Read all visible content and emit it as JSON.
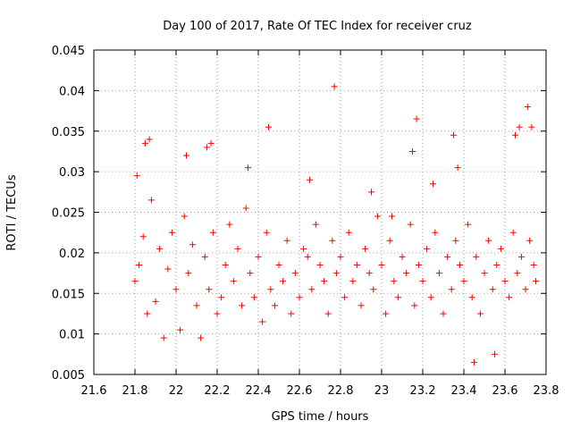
{
  "chart_data": {
    "type": "scatter",
    "title": "Day 100 of 2017, Rate Of TEC Index for receiver cruz",
    "xlabel": "GPS time / hours",
    "ylabel": "ROTI / TECUs",
    "xlim": [
      21.6,
      23.8
    ],
    "ylim": [
      0.005,
      0.045
    ],
    "x_ticks": [
      "21.6",
      "21.8",
      "22",
      "22.2",
      "22.4",
      "22.6",
      "22.8",
      "23",
      "23.2",
      "23.4",
      "23.6",
      "23.8"
    ],
    "y_ticks": [
      "0.005",
      "0.01",
      "0.015",
      "0.02",
      "0.025",
      "0.03",
      "0.035",
      "0.04",
      "0.045"
    ],
    "grid": true,
    "marker": "+",
    "marker_color": "#ff0000",
    "series": [
      {
        "x": [
          21.8,
          21.82,
          21.84,
          21.86,
          21.88,
          21.9,
          21.92,
          21.94,
          21.96,
          21.98,
          22.0,
          22.02,
          22.04,
          22.06,
          22.08,
          22.1,
          22.12,
          22.14,
          22.16,
          22.18,
          22.2,
          22.22,
          22.24,
          22.26,
          22.28,
          22.3,
          22.32,
          22.34,
          22.36,
          22.38,
          22.4,
          22.42,
          22.44,
          22.46,
          22.48,
          22.5,
          22.52,
          22.54,
          22.56,
          22.58,
          22.6,
          22.62,
          22.64,
          22.66,
          22.68,
          22.7,
          22.72,
          22.74,
          22.76,
          22.78,
          22.8,
          22.82,
          22.84,
          22.86,
          22.88,
          22.9,
          22.92,
          22.94,
          22.96,
          22.98,
          23.0,
          23.02,
          23.04,
          23.06,
          23.08,
          23.1,
          23.12,
          23.14,
          23.16,
          23.18,
          23.2,
          23.22,
          23.24,
          23.26,
          23.28,
          23.3,
          23.32,
          23.34,
          23.36,
          23.38,
          23.4,
          23.42,
          23.44,
          23.46,
          23.48,
          23.5,
          23.52,
          23.54,
          23.56,
          23.58,
          23.6,
          23.62,
          23.64,
          23.66,
          23.68,
          23.7,
          23.72,
          23.74,
          23.75,
          21.81,
          21.85,
          21.87,
          22.05,
          22.15,
          22.17,
          22.35,
          22.45,
          22.65,
          22.77,
          22.95,
          23.05,
          23.15,
          23.17,
          23.25,
          23.35,
          23.37,
          23.45,
          23.55,
          23.65,
          23.67,
          23.71,
          23.73
        ],
        "y": [
          0.0165,
          0.0185,
          0.022,
          0.0125,
          0.0265,
          0.014,
          0.0205,
          0.0095,
          0.018,
          0.0225,
          0.0155,
          0.0105,
          0.0245,
          0.0175,
          0.021,
          0.0135,
          0.0095,
          0.0195,
          0.0155,
          0.0225,
          0.0125,
          0.0145,
          0.0185,
          0.0235,
          0.0165,
          0.0205,
          0.0135,
          0.0255,
          0.0175,
          0.0145,
          0.0195,
          0.0115,
          0.0225,
          0.0155,
          0.0135,
          0.0185,
          0.0165,
          0.0215,
          0.0125,
          0.0175,
          0.0145,
          0.0205,
          0.0195,
          0.0155,
          0.0235,
          0.0185,
          0.0165,
          0.0125,
          0.0215,
          0.0175,
          0.0195,
          0.0145,
          0.0225,
          0.0165,
          0.0185,
          0.0135,
          0.0205,
          0.0175,
          0.0155,
          0.0245,
          0.0185,
          0.0125,
          0.0215,
          0.0165,
          0.0145,
          0.0195,
          0.0175,
          0.0235,
          0.0135,
          0.0185,
          0.0165,
          0.0205,
          0.0145,
          0.0225,
          0.0175,
          0.0125,
          0.0195,
          0.0155,
          0.0215,
          0.0185,
          0.0165,
          0.0235,
          0.0145,
          0.0195,
          0.0125,
          0.0175,
          0.0215,
          0.0155,
          0.0185,
          0.0205,
          0.0165,
          0.0145,
          0.0225,
          0.0175,
          0.0195,
          0.0155,
          0.0215,
          0.0185,
          0.0165,
          0.0295,
          0.0335,
          0.034,
          0.032,
          0.033,
          0.0335,
          0.0305,
          0.0355,
          0.029,
          0.0405,
          0.0275,
          0.0245,
          0.0325,
          0.0365,
          0.0285,
          0.0345,
          0.0305,
          0.0065,
          0.0075,
          0.0345,
          0.0355,
          0.038,
          0.0355
        ]
      }
    ]
  }
}
